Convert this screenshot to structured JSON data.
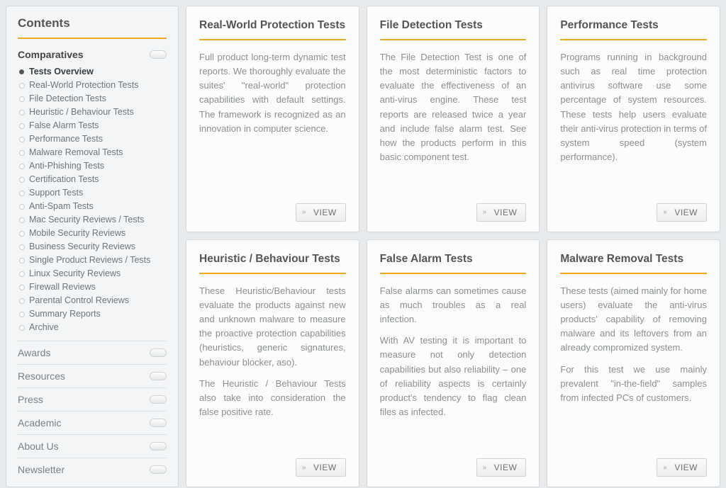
{
  "colors": {
    "accent": "#f2a722",
    "page_bg": "#e8ebed",
    "panel_bg": "#f3f5f6",
    "card_bg": "#fcfcfc",
    "border": "#d5d9db",
    "text_heading": "#555555",
    "text_body": "#8a8f92",
    "text_muted": "#7c8184"
  },
  "sidebar": {
    "title": "Contents",
    "section_title": "Comparatives",
    "items": [
      {
        "label": "Tests Overview",
        "active": true
      },
      {
        "label": "Real-World Protection Tests",
        "active": false
      },
      {
        "label": "File Detection Tests",
        "active": false
      },
      {
        "label": "Heuristic / Behaviour Tests",
        "active": false
      },
      {
        "label": "False Alarm Tests",
        "active": false
      },
      {
        "label": "Performance Tests",
        "active": false
      },
      {
        "label": "Malware Removal Tests",
        "active": false
      },
      {
        "label": "Anti-Phishing Tests",
        "active": false
      },
      {
        "label": "Certification Tests",
        "active": false
      },
      {
        "label": "Support Tests",
        "active": false
      },
      {
        "label": "Anti-Spam Tests",
        "active": false
      },
      {
        "label": "Mac Security Reviews / Tests",
        "active": false
      },
      {
        "label": "Mobile Security Reviews",
        "active": false
      },
      {
        "label": "Business Security Reviews",
        "active": false
      },
      {
        "label": "Single Product Reviews / Tests",
        "active": false
      },
      {
        "label": "Linux Security Reviews",
        "active": false
      },
      {
        "label": "Firewall Reviews",
        "active": false
      },
      {
        "label": "Parental Control Reviews",
        "active": false
      },
      {
        "label": "Summary Reports",
        "active": false
      },
      {
        "label": "Archive",
        "active": false
      }
    ],
    "collapsed_sections": [
      "Awards",
      "Resources",
      "Press",
      "Academic",
      "About Us",
      "Newsletter"
    ]
  },
  "view_button_label": "VIEW",
  "cards": [
    {
      "title": "Real-World Protection Tests",
      "paragraphs": [
        "Full product long-term dynamic test reports. We thoroughly evaluate the suites' \"real-world\" protection capabilities with default settings. The framework is recognized as an innovation in computer science."
      ]
    },
    {
      "title": "File Detection Tests",
      "paragraphs": [
        "The File Detection Test is one of the most deterministic factors to evaluate the effectiveness of an anti-virus engine. These test reports are released twice a year and include false alarm test. See how the products perform in this basic component test."
      ]
    },
    {
      "title": "Performance Tests",
      "paragraphs": [
        "Programs running in background such as real time protection antivirus software use some percentage of system resources. These tests help users evaluate their anti-virus protection in terms of system speed (system performance)."
      ]
    },
    {
      "title": "Heuristic / Behaviour Tests",
      "paragraphs": [
        "These Heuristic/Behaviour tests evaluate the products against new and unknown malware to measure the proactive protection capabilities (heuristics, generic signatures, behaviour blocker, aso).",
        "The Heuristic / Behaviour Tests also take into consideration the false positive rate."
      ],
      "show_view": true
    },
    {
      "title": "False Alarm Tests",
      "paragraphs": [
        "False alarms can sometimes cause as much troubles as a real infection.",
        "With AV testing it is important to measure not only detection capabilities but also reliability – one of reliability aspects is certainly product's tendency to flag clean files as infected."
      ]
    },
    {
      "title": "Malware Removal Tests",
      "paragraphs": [
        "These tests (aimed mainly for home users) evaluate the anti-virus products' capability of removing malware and its leftovers from an already compromized system.",
        "For this test we use mainly prevalent \"in-the-field\" samples from infected PCs of customers."
      ]
    }
  ]
}
